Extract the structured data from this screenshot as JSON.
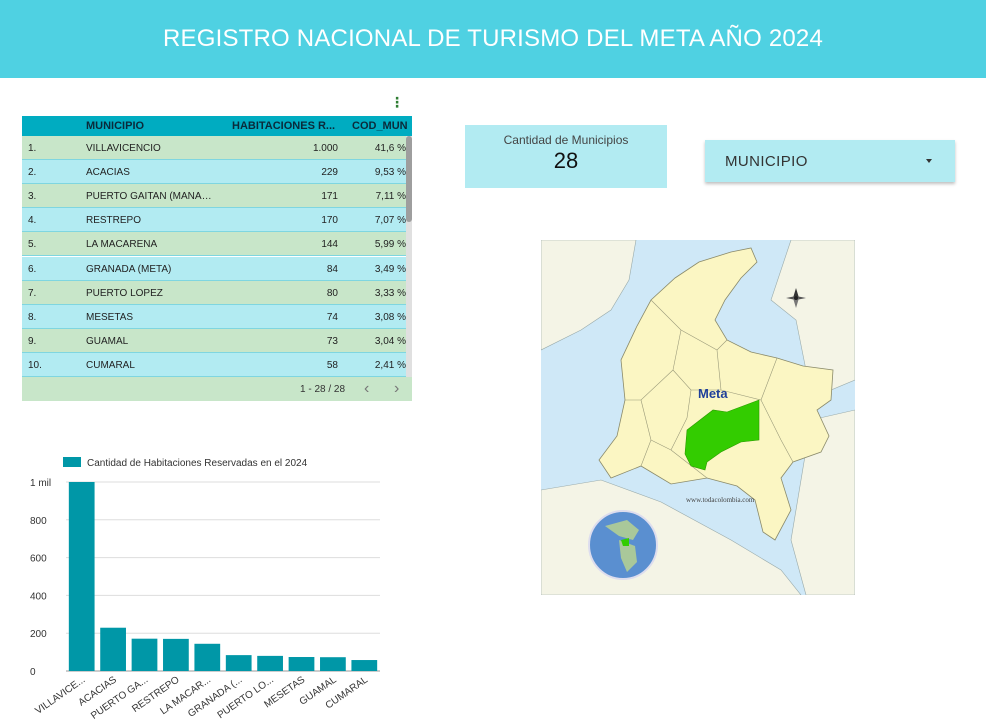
{
  "header": {
    "title": "REGISTRO NACIONAL DE TURISMO DEL META AÑO 2024"
  },
  "table": {
    "columns": [
      "MUNICIPIO",
      "HABITACIONES R...",
      "COD_MUN"
    ],
    "rows": [
      {
        "idx": "1.",
        "municipio": "VILLAVICENCIO",
        "habitaciones": "1.000",
        "cod": "41,6 %"
      },
      {
        "idx": "2.",
        "municipio": "ACACIAS",
        "habitaciones": "229",
        "cod": "9,53 %"
      },
      {
        "idx": "3.",
        "municipio": "PUERTO GAITAN (MANACA...",
        "habitaciones": "171",
        "cod": "7,11 %"
      },
      {
        "idx": "4.",
        "municipio": "RESTREPO",
        "habitaciones": "170",
        "cod": "7,07 %"
      },
      {
        "idx": "5.",
        "municipio": "LA MACARENA",
        "habitaciones": "144",
        "cod": "5,99 %"
      },
      {
        "idx": "6.",
        "municipio": "GRANADA (META)",
        "habitaciones": "84",
        "cod": "3,49 %"
      },
      {
        "idx": "7.",
        "municipio": "PUERTO LOPEZ",
        "habitaciones": "80",
        "cod": "3,33 %"
      },
      {
        "idx": "8.",
        "municipio": "MESETAS",
        "habitaciones": "74",
        "cod": "3,08 %"
      },
      {
        "idx": "9.",
        "municipio": "GUAMAL",
        "habitaciones": "73",
        "cod": "3,04 %"
      },
      {
        "idx": "10.",
        "municipio": "CUMARAL",
        "habitaciones": "58",
        "cod": "2,41 %"
      }
    ],
    "pagination": "1 - 28 / 28",
    "prev_icon": "‹",
    "next_icon": "›"
  },
  "scorecard": {
    "label": "Cantidad de Municipios",
    "value": "28"
  },
  "dropdown": {
    "label": "MUNICIPIO"
  },
  "map": {
    "region_label": "Meta",
    "watermark": "www.todacolombia.com"
  },
  "chart_data": {
    "type": "bar",
    "legend": "Cantidad de Habitaciones Reservadas en el 2024",
    "legend_position": "top-left",
    "categories": [
      "VILLAVICE...",
      "ACACIAS",
      "PUERTO GA...",
      "RESTREPO",
      "LA MACAR...",
      "GRANADA (...",
      "PUERTO LO...",
      "MESETAS",
      "GUAMAL",
      "CUMARAL"
    ],
    "values": [
      1000,
      229,
      171,
      170,
      144,
      84,
      80,
      74,
      73,
      58
    ],
    "ylim": [
      0,
      1000
    ],
    "yticks": [
      {
        "v": 0,
        "label": "0"
      },
      {
        "v": 200,
        "label": "200"
      },
      {
        "v": 400,
        "label": "400"
      },
      {
        "v": 600,
        "label": "600"
      },
      {
        "v": 800,
        "label": "800"
      },
      {
        "v": 1000,
        "label": "1 mil"
      }
    ],
    "grid": true,
    "color": "#0097a7"
  },
  "colors": {
    "header": "#4fd1e2",
    "table_head": "#00acc1",
    "row_green": "#c8e6c9",
    "row_cyan": "#b2ebf2",
    "bar": "#0097a7",
    "meta": "#33cc00"
  }
}
